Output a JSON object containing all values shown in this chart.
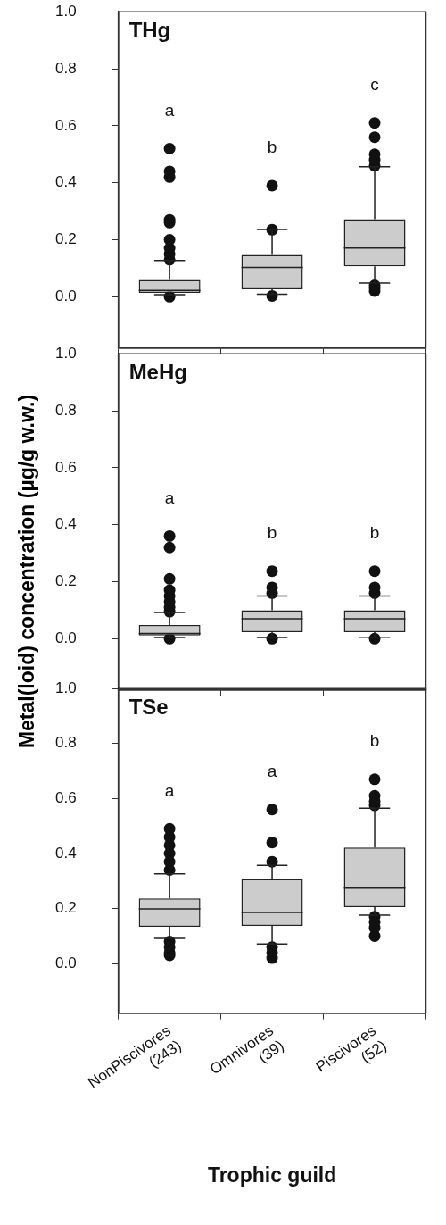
{
  "chart_data": [
    {
      "type": "box",
      "title": "THg",
      "categories": [
        null,
        null,
        null
      ],
      "ylim": [
        -0.18,
        1.0
      ],
      "yticks": [
        {
          "value": 0,
          "label": "0.0"
        },
        {
          "value": 0.2,
          "label": "0.2"
        },
        {
          "value": 0.4,
          "label": "0.4"
        },
        {
          "value": 0.6,
          "label": "0.6"
        },
        {
          "value": 0.8,
          "label": "0.8"
        },
        {
          "value": 1,
          "label": "1.0"
        }
      ],
      "tick_labels": "y",
      "series": [
        {
          "color": "#cccccc",
          "boxes": [
            {
              "low": 0.007,
              "q1": 0.014,
              "median": 0.022,
              "q3": 0.059,
              "high": 0.127,
              "outliers": [
                0.52,
                0.44,
                0.42,
                0.27,
                0.26,
                0.2,
                0.17,
                0.15,
                0.13,
                0.0
              ]
            },
            {
              "low": 0.009,
              "q1": 0.026,
              "median": 0.103,
              "q3": 0.147,
              "high": 0.236,
              "outliers": [
                0.39,
                0.235,
                0.003
              ]
            },
            {
              "low": 0.048,
              "q1": 0.107,
              "median": 0.171,
              "q3": 0.272,
              "high": 0.456,
              "outliers": [
                0.61,
                0.56,
                0.5,
                0.48,
                0.46,
                0.04,
                0.03,
                0.02
              ]
            }
          ]
        }
      ],
      "annotations": [
        "a",
        "b",
        "c"
      ]
    },
    {
      "type": "box",
      "title": "MeHg",
      "ylabel": "Metal(loid) concentration (µg/g w.w.)",
      "categories": [
        null,
        null,
        null
      ],
      "ylim": [
        -0.18,
        1.0
      ],
      "yticks": [
        {
          "value": 0,
          "label": "0.0"
        },
        {
          "value": 0.2,
          "label": "0.2"
        },
        {
          "value": 0.4,
          "label": "0.4"
        },
        {
          "value": 0.6,
          "label": "0.6"
        },
        {
          "value": 0.8,
          "label": "0.8"
        },
        {
          "value": 1,
          "label": "1.0"
        }
      ],
      "tick_labels": "y",
      "series": [
        {
          "color": "#cccccc",
          "boxes": [
            {
              "low": 0.004,
              "q1": 0.011,
              "median": 0.018,
              "q3": 0.048,
              "high": 0.092,
              "outliers": [
                0.36,
                0.32,
                0.21,
                0.17,
                0.15,
                0.13,
                0.11,
                0.095,
                0.0
              ]
            },
            {
              "low": 0.004,
              "q1": 0.023,
              "median": 0.07,
              "q3": 0.1,
              "high": 0.15,
              "outliers": [
                0.237,
                0.18,
                0.16,
                0.0
              ]
            },
            {
              "low": 0.005,
              "q1": 0.023,
              "median": 0.07,
              "q3": 0.1,
              "high": 0.15,
              "outliers": [
                0.237,
                0.18,
                0.16,
                0.0
              ]
            }
          ]
        }
      ],
      "annotations": [
        "a",
        "b",
        "b"
      ]
    },
    {
      "type": "box",
      "title": "TSe",
      "xlabel": "Trophic guild",
      "categories": [
        "NonPiscivores\n(243)",
        "Omnivores\n(39)",
        "Piscivores\n(52)"
      ],
      "ylim": [
        -0.18,
        1.0
      ],
      "yticks": [
        {
          "value": 0,
          "label": "0.0"
        },
        {
          "value": 0.2,
          "label": "0.2"
        },
        {
          "value": 0.4,
          "label": "0.4"
        },
        {
          "value": 0.6,
          "label": "0.6"
        },
        {
          "value": 0.8,
          "label": "0.8"
        },
        {
          "value": 1,
          "label": "1.0"
        }
      ],
      "series": [
        {
          "color": "#cccccc",
          "boxes": [
            {
              "low": 0.092,
              "q1": 0.134,
              "median": 0.199,
              "q3": 0.237,
              "high": 0.326,
              "outliers": [
                0.49,
                0.46,
                0.43,
                0.4,
                0.37,
                0.34,
                0.08,
                0.06,
                0.04,
                0.03
              ]
            },
            {
              "low": 0.071,
              "q1": 0.137,
              "median": 0.186,
              "q3": 0.307,
              "high": 0.357,
              "outliers": [
                0.56,
                0.44,
                0.37,
                0.06,
                0.04,
                0.02
              ]
            },
            {
              "low": 0.176,
              "q1": 0.205,
              "median": 0.274,
              "q3": 0.422,
              "high": 0.565,
              "outliers": [
                0.67,
                0.61,
                0.59,
                0.575,
                0.17,
                0.15,
                0.13,
                0.1
              ]
            }
          ]
        }
      ],
      "annotations": [
        "a",
        "a",
        "b"
      ]
    }
  ]
}
